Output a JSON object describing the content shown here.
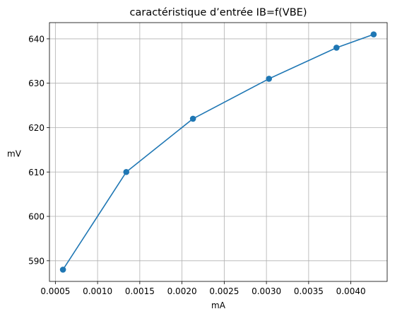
{
  "chart_data": {
    "type": "line",
    "title": "caractéristique d’entrée IB=f(VBE)",
    "xlabel": "mA",
    "ylabel": "mV",
    "xlim": [
      0.00043,
      0.00443
    ],
    "ylim": [
      585.35,
      643.65
    ],
    "x_ticks": [
      0.0005,
      0.001,
      0.0015,
      0.002,
      0.0025,
      0.003,
      0.0035,
      0.004
    ],
    "x_tick_labels": [
      "0.0005",
      "0.0010",
      "0.0015",
      "0.0020",
      "0.0025",
      "0.0030",
      "0.0035",
      "0.0040"
    ],
    "y_ticks": [
      590,
      600,
      610,
      620,
      630,
      640
    ],
    "y_tick_labels": [
      "590",
      "600",
      "610",
      "620",
      "630",
      "640"
    ],
    "grid": true,
    "series": [
      {
        "color": "#1f77b4",
        "marker": "circle",
        "x": [
          0.00059,
          0.00134,
          0.00213,
          0.00303,
          0.00383,
          0.00427
        ],
        "y": [
          588,
          610,
          622,
          631,
          638,
          641
        ]
      }
    ]
  }
}
